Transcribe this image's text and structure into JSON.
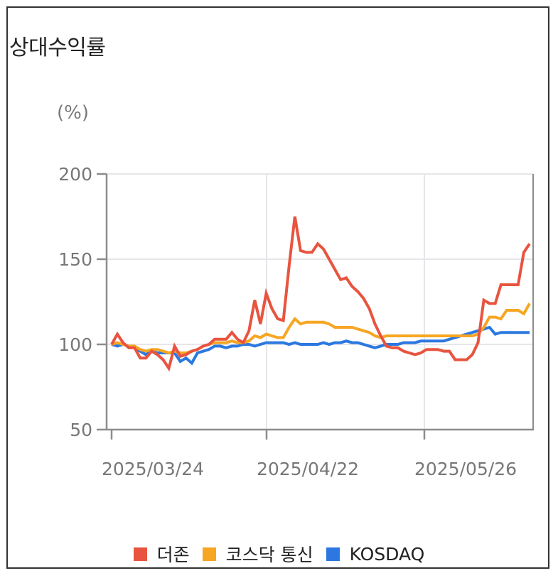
{
  "title": "상대수익률",
  "unit": "(%)",
  "colors": {
    "douzone": "#E8543F",
    "kosdaq_telecom": "#F6A623",
    "kosdaq": "#2C78E0",
    "grid": "#e6e6ea",
    "axis": "#8c8c8c"
  },
  "legend": [
    {
      "label": "더존",
      "color": "#E8543F"
    },
    {
      "label": "코스닥 통신",
      "color": "#F6A623"
    },
    {
      "label": "KOSDAQ",
      "color": "#2C78E0"
    }
  ],
  "chart_data": {
    "type": "line",
    "title": "상대수익률",
    "ylabel": "(%)",
    "xlabel": "",
    "ylim": [
      50,
      200
    ],
    "yticks": [
      50,
      100,
      150,
      200
    ],
    "xticks": [
      "2025/03/24",
      "2025/04/22",
      "2025/05/26"
    ],
    "grid": true,
    "legend_position": "bottom",
    "x_index_note": "74 evenly spaced observations from 2025/03/24 to approx. mid-June 2025; tick 2025/04/22 at index ~27, 2025/05/26 at index ~55",
    "series": [
      {
        "name": "더존",
        "color": "#E8543F",
        "values": [
          100,
          106,
          101,
          98,
          98,
          92,
          92,
          96,
          94,
          91,
          86,
          99,
          93,
          94,
          96,
          97,
          99,
          100,
          103,
          103,
          103,
          107,
          103,
          101,
          108,
          126,
          112,
          130,
          121,
          115,
          114,
          146,
          175,
          155,
          154,
          154,
          159,
          156,
          150,
          144,
          138,
          139,
          134,
          131,
          127,
          121,
          112,
          105,
          99,
          98,
          98,
          96,
          95,
          94,
          95,
          97,
          97,
          97,
          96,
          96,
          91,
          91,
          91,
          94,
          101,
          126,
          124,
          124,
          135,
          135,
          135,
          135,
          154,
          159
        ]
      },
      {
        "name": "코스닥 통신",
        "color": "#F6A623",
        "values": [
          100,
          101,
          100,
          99,
          99,
          97,
          96,
          97,
          97,
          96,
          95,
          96,
          95,
          95,
          96,
          97,
          99,
          100,
          101,
          101,
          101,
          102,
          101,
          101,
          102,
          105,
          104,
          106,
          105,
          104,
          104,
          110,
          115,
          112,
          113,
          113,
          113,
          113,
          112,
          110,
          110,
          110,
          110,
          109,
          108,
          107,
          105,
          104,
          105,
          105,
          105,
          105,
          105,
          105,
          105,
          105,
          105,
          105,
          105,
          105,
          105,
          105,
          105,
          105,
          106,
          110,
          116,
          116,
          115,
          120,
          120,
          120,
          118,
          124
        ]
      },
      {
        "name": "KOSDAQ",
        "color": "#2C78E0",
        "values": [
          100,
          99,
          100,
          99,
          98,
          96,
          94,
          96,
          95,
          95,
          95,
          95,
          90,
          92,
          89,
          95,
          96,
          97,
          99,
          99,
          98,
          99,
          99,
          100,
          100,
          99,
          100,
          101,
          101,
          101,
          101,
          100,
          101,
          100,
          100,
          100,
          100,
          101,
          100,
          101,
          101,
          102,
          101,
          101,
          100,
          99,
          98,
          99,
          100,
          100,
          100,
          101,
          101,
          101,
          102,
          102,
          102,
          102,
          102,
          103,
          104,
          105,
          106,
          107,
          108,
          109,
          110,
          106,
          107,
          107,
          107,
          107,
          107,
          107
        ]
      }
    ]
  }
}
